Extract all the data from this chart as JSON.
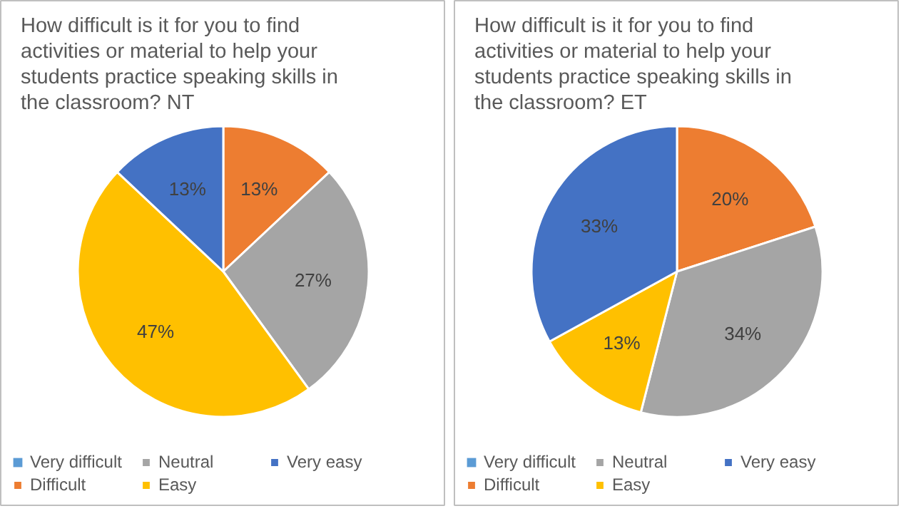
{
  "chart_data": [
    {
      "type": "pie",
      "title": "How difficult is it for you to find activities or material to help your students practice speaking skills in the classroom?  NT",
      "categories": [
        "Very difficult",
        "Difficult",
        "Neutral",
        "Easy",
        "Very easy"
      ],
      "values": [
        0,
        13,
        27,
        47,
        13
      ],
      "colors": [
        "#5b9bd5",
        "#ed7d31",
        "#a5a5a5",
        "#ffc000",
        "#4472c4"
      ],
      "value_labels": [
        null,
        "13%",
        "27%",
        "47%",
        "13%"
      ],
      "legend": "bottom"
    },
    {
      "type": "pie",
      "title": "How difficult is it for you to find activities or material to help your students practice speaking skills in the classroom?  ET",
      "categories": [
        "Very difficult",
        "Difficult",
        "Neutral",
        "Easy",
        "Very easy"
      ],
      "values": [
        0,
        20,
        34,
        13,
        33
      ],
      "colors": [
        "#5b9bd5",
        "#ed7d31",
        "#a5a5a5",
        "#ffc000",
        "#4472c4"
      ],
      "value_labels": [
        null,
        "20%",
        "34%",
        "13%",
        "33%"
      ],
      "legend": "bottom"
    }
  ]
}
